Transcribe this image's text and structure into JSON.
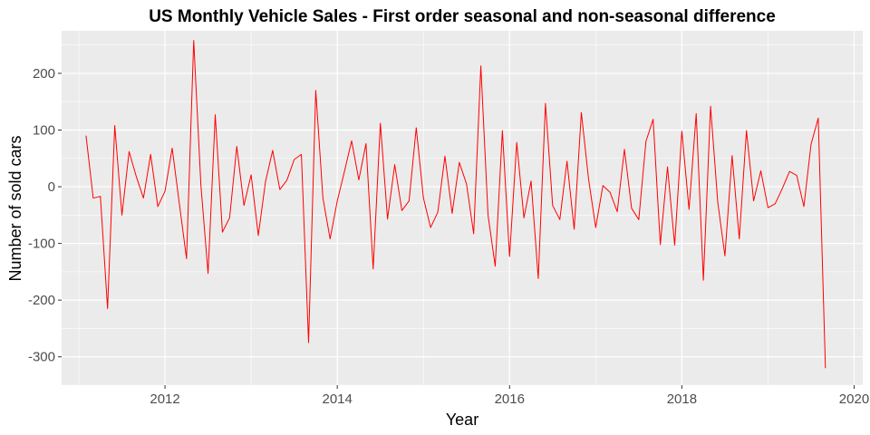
{
  "chart_data": {
    "type": "line",
    "title": "US Monthly Vehicle Sales - First order seasonal and non-seasonal difference",
    "xlabel": "Year",
    "ylabel": "Number of sold cars",
    "xlim": [
      2010.8,
      2020.1
    ],
    "ylim": [
      -350,
      275
    ],
    "x_ticks": [
      2012,
      2014,
      2016,
      2018,
      2020
    ],
    "x_tick_labels": [
      "2012",
      "2014",
      "2016",
      "2018",
      "2020"
    ],
    "y_ticks": [
      -300,
      -200,
      -100,
      0,
      100,
      200
    ],
    "y_tick_labels": [
      "-300",
      "-200",
      "-100",
      "0",
      "100",
      "200"
    ],
    "grid": true,
    "panel_background": "#ebebeb",
    "grid_color": "#ffffff",
    "series": [
      {
        "color": "#ff0000",
        "x_start": 2011.083333,
        "x_step": 0.083333,
        "values": [
          90,
          -20,
          -17,
          -215,
          108,
          -50,
          62,
          18,
          -20,
          57,
          -35,
          -8,
          68,
          -30,
          -127,
          258,
          3,
          -153,
          127,
          -80,
          -55,
          71,
          -33,
          21,
          -86,
          9,
          64,
          -5,
          12,
          48,
          57,
          -275,
          170,
          -20,
          -92,
          -25,
          27,
          81,
          12,
          76,
          -145,
          112,
          -57,
          39,
          -42,
          -25,
          104,
          -20,
          -72,
          -45,
          54,
          -47,
          43,
          5,
          -83,
          213,
          -50,
          -140,
          99,
          -123,
          78,
          -55,
          10,
          -162,
          147,
          -33,
          -58,
          45,
          -75,
          131,
          14,
          -72,
          2,
          -10,
          -44,
          66,
          -38,
          -58,
          80,
          119,
          -102,
          35,
          -103,
          98,
          -40,
          129,
          -165,
          142,
          -27,
          -122,
          55,
          -92,
          99,
          -25,
          28,
          -37,
          -30,
          -3,
          27,
          20,
          -35,
          75,
          121,
          -320
        ]
      }
    ]
  }
}
